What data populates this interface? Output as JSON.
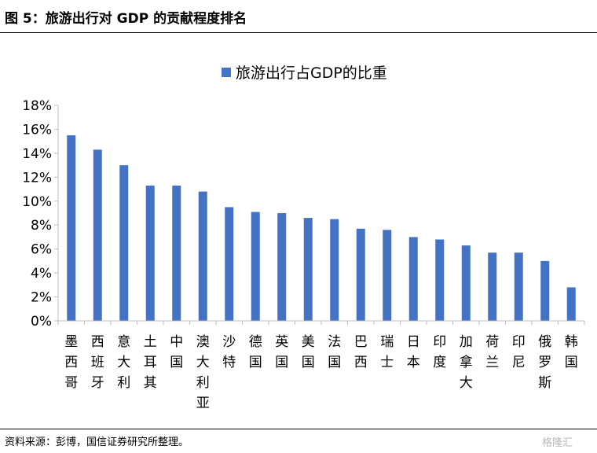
{
  "figure": {
    "title": "图 5：旅游出行对 GDP 的贡献程度排名",
    "source": "资料来源：彭博，国信证券研究所整理。",
    "watermark": "格隆汇"
  },
  "colors": {
    "bar": "#4472c4",
    "axis": "#bfbfbf"
  },
  "chart_data": {
    "type": "bar",
    "categories": [
      "墨西哥",
      "西班牙",
      "意大利",
      "土耳其",
      "中国",
      "澳大利亚",
      "沙特",
      "德国",
      "英国",
      "美国",
      "法国",
      "巴西",
      "瑞士",
      "日本",
      "印度",
      "加拿大",
      "荷兰",
      "印尼",
      "俄罗斯",
      "韩国"
    ],
    "series": [
      {
        "name": "旅游出行占GDP的比重",
        "values": [
          15.5,
          14.3,
          13.0,
          11.3,
          11.3,
          10.8,
          9.5,
          9.1,
          9.0,
          8.6,
          8.5,
          7.7,
          7.6,
          7.0,
          6.8,
          6.3,
          5.7,
          5.7,
          5.0,
          2.8
        ]
      }
    ],
    "ylim": [
      0,
      18
    ],
    "yticks": [
      0,
      2,
      4,
      6,
      8,
      10,
      12,
      14,
      16,
      18
    ],
    "ytick_labels": [
      "0%",
      "2%",
      "4%",
      "6%",
      "8%",
      "10%",
      "12%",
      "14%",
      "16%",
      "18%"
    ],
    "legend_position": "top-center",
    "grid": false
  }
}
